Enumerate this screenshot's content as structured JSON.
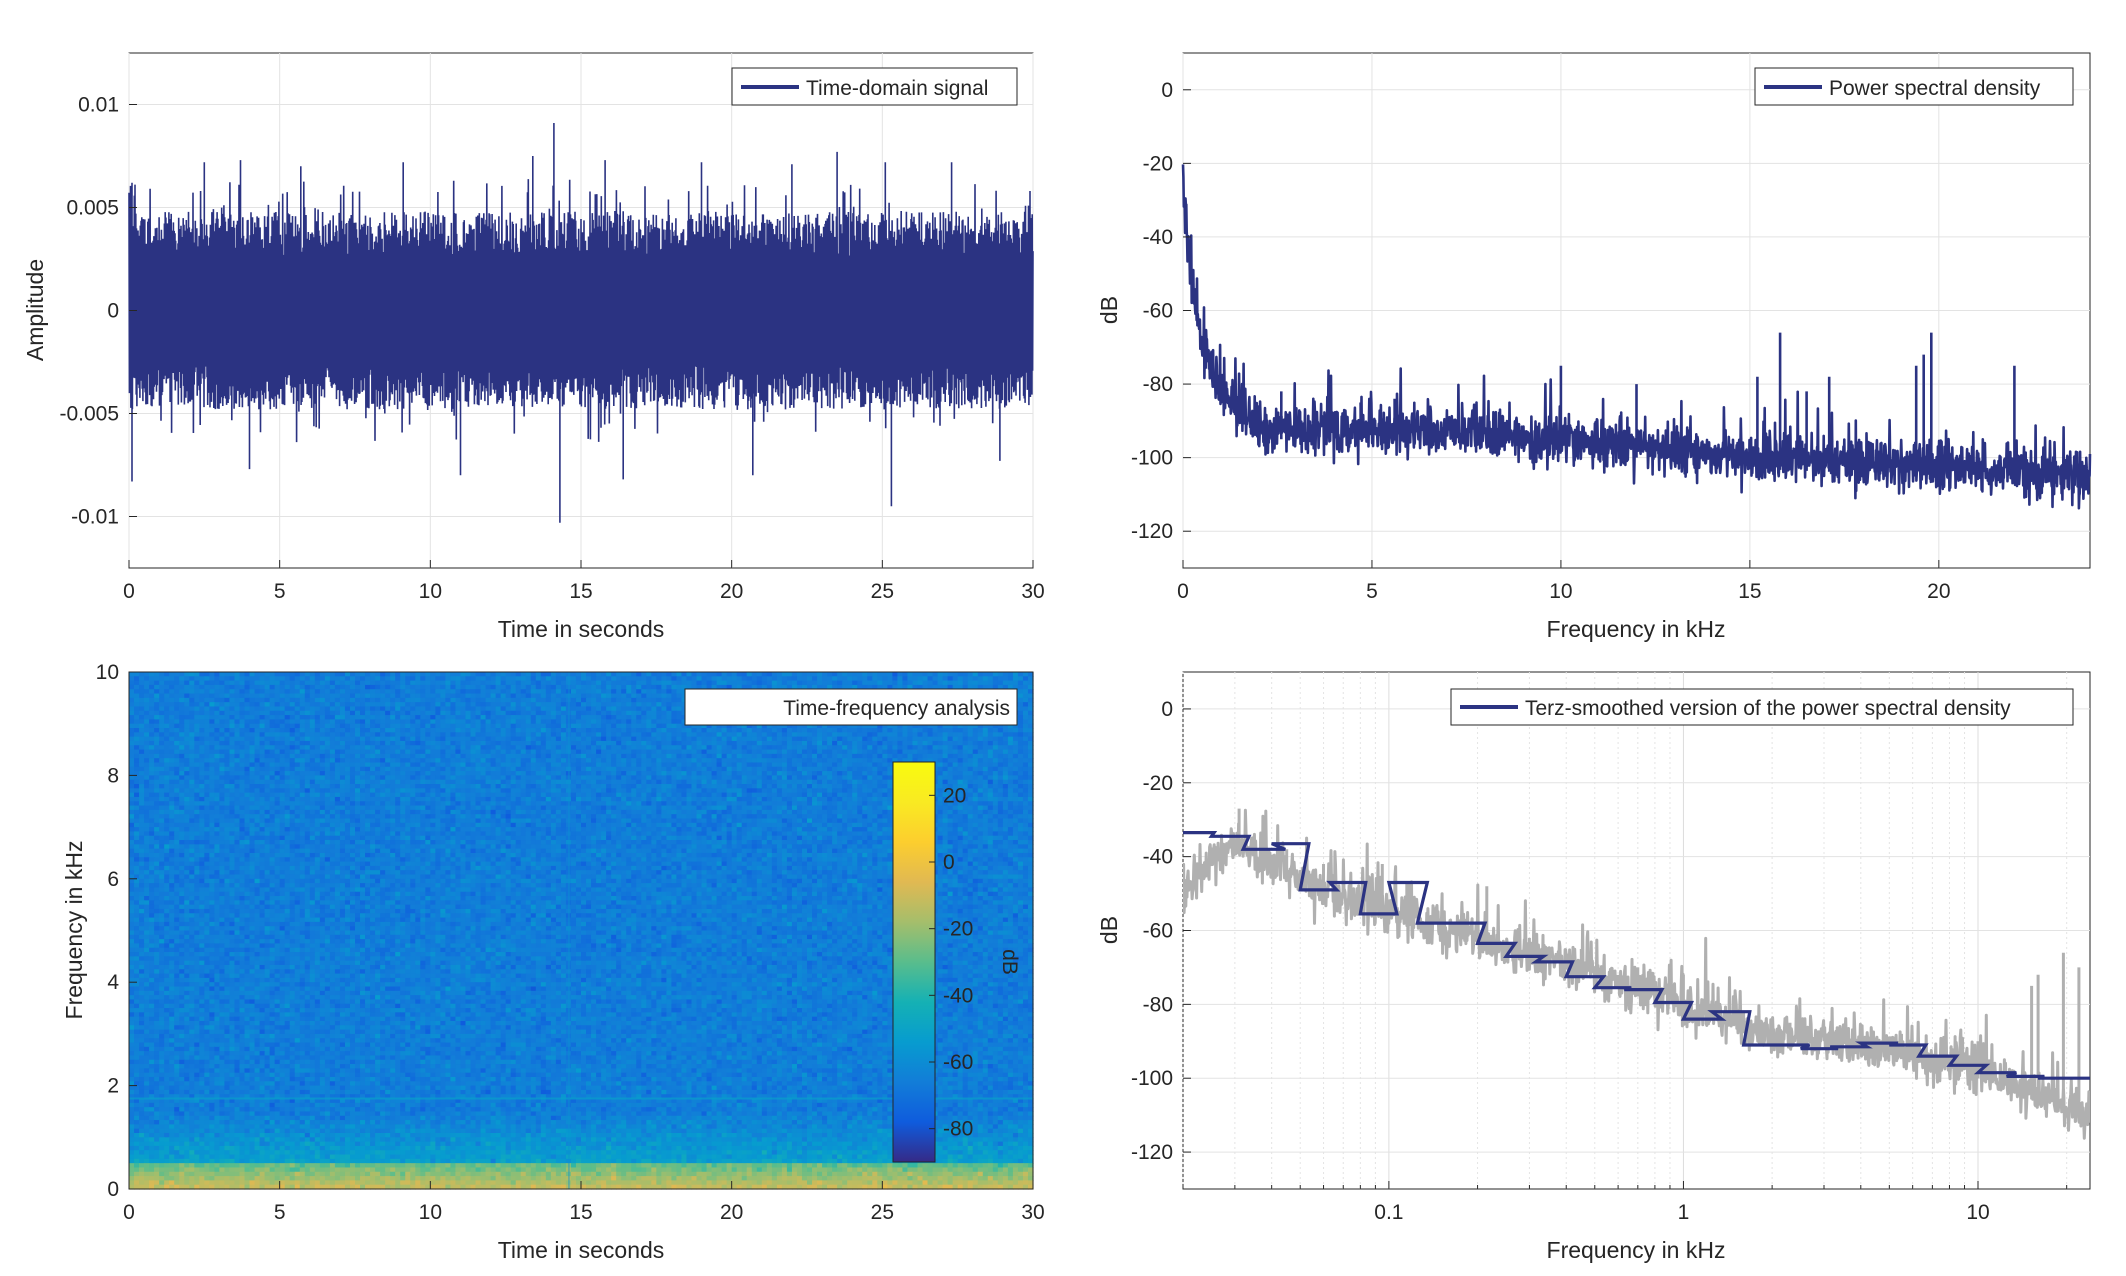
{
  "chart_data": [
    {
      "id": "time-domain",
      "type": "line",
      "xlabel": "Time in seconds",
      "ylabel": "Amplitude",
      "xlim": [
        0,
        30
      ],
      "ylim": [
        -0.0125,
        0.0125
      ],
      "xticks": [
        0,
        5,
        10,
        15,
        20,
        25,
        30
      ],
      "yticks": [
        -0.01,
        -0.005,
        0,
        0.005,
        0.01
      ],
      "ytick_labels": [
        "-0.01",
        "-0.005",
        "0",
        "0.005",
        "0.01"
      ],
      "grid": true,
      "legend_position": "top-right",
      "series": [
        {
          "name": "Time-domain signal",
          "color": "#2b3382",
          "envelope_typical": 0.0048,
          "peaks": [
            [
              0.1,
              0.0062
            ],
            [
              0.1,
              -0.0083
            ],
            [
              2.5,
              0.0072
            ],
            [
              3.7,
              0.0073
            ],
            [
              4.0,
              -0.0077
            ],
            [
              5.7,
              0.007
            ],
            [
              9.1,
              0.0072
            ],
            [
              11.0,
              -0.008
            ],
            [
              13.4,
              0.0075
            ],
            [
              14.1,
              0.0091
            ],
            [
              14.3,
              -0.0103
            ],
            [
              15.8,
              0.0073
            ],
            [
              16.4,
              -0.0082
            ],
            [
              19.0,
              0.0072
            ],
            [
              20.7,
              -0.008
            ],
            [
              22.0,
              0.0071
            ],
            [
              23.5,
              0.0077
            ],
            [
              25.1,
              0.0072
            ],
            [
              25.3,
              -0.0095
            ],
            [
              27.3,
              0.0072
            ],
            [
              28.9,
              -0.0073
            ],
            [
              29.9,
              0.0058
            ]
          ]
        }
      ]
    },
    {
      "id": "psd",
      "type": "line",
      "xlabel": "Frequency in kHz",
      "ylabel": "dB",
      "xlim": [
        0,
        24
      ],
      "ylim": [
        -130,
        10
      ],
      "xticks": [
        0,
        5,
        10,
        15,
        20
      ],
      "yticks": [
        -120,
        -100,
        -80,
        -60,
        -40,
        -20,
        0
      ],
      "grid": true,
      "legend_position": "top-right",
      "series": [
        {
          "name": "Power spectral density",
          "color": "#2b3382",
          "baseline": [
            [
              0,
              -25
            ],
            [
              0.15,
              -45
            ],
            [
              0.5,
              -70
            ],
            [
              1,
              -82
            ],
            [
              2,
              -92
            ],
            [
              5,
              -92
            ],
            [
              10,
              -95
            ],
            [
              15,
              -100
            ],
            [
              20,
              -102
            ],
            [
              24,
              -105
            ]
          ],
          "peaks": [
            [
              1.6,
              -79
            ],
            [
              2.6,
              -82
            ],
            [
              4.7,
              -85
            ],
            [
              5.6,
              -84
            ],
            [
              10.0,
              -75
            ],
            [
              12.0,
              -80
            ],
            [
              15.2,
              -78
            ],
            [
              15.8,
              -66
            ],
            [
              16.5,
              -82
            ],
            [
              17.1,
              -78
            ],
            [
              19.4,
              -75
            ],
            [
              19.6,
              -72
            ],
            [
              19.8,
              -66
            ],
            [
              22.0,
              -75
            ]
          ]
        }
      ]
    },
    {
      "id": "spectrogram",
      "type": "heatmap",
      "xlabel": "Time in seconds",
      "ylabel": "Frequency in kHz",
      "xlim": [
        0,
        30
      ],
      "ylim": [
        0,
        10
      ],
      "xticks": [
        0,
        5,
        10,
        15,
        20,
        25,
        30
      ],
      "yticks": [
        0,
        2,
        4,
        6,
        8,
        10
      ],
      "legend_position": "top-right",
      "legend_label": "Time-frequency analysis",
      "colorbar": {
        "label": "dB",
        "range": [
          -90,
          30
        ],
        "ticks": [
          -80,
          -60,
          -40,
          -20,
          0,
          20
        ],
        "colormap": "parula"
      },
      "features": {
        "background_db": -66,
        "low_frequency_band_khz": [
          0,
          0.5
        ],
        "low_frequency_db": -10,
        "horizontal_line_khz": 1.75,
        "vertical_line_s": 14.6
      }
    },
    {
      "id": "terz-smoothed",
      "type": "line",
      "xlabel": "Frequency in kHz",
      "ylabel": "dB",
      "xscale": "log",
      "xlim": [
        0.02,
        24
      ],
      "ylim": [
        -130,
        10
      ],
      "xticks": [
        0.1,
        1,
        10
      ],
      "xtick_labels": [
        "0.1",
        "1",
        "10"
      ],
      "yticks": [
        -120,
        -100,
        -80,
        -60,
        -40,
        -20,
        0
      ],
      "grid": true,
      "legend_position": "top-right",
      "series": [
        {
          "name": "",
          "color": "#b0b0b0",
          "baseline": [
            [
              0.02,
              -50
            ],
            [
              0.025,
              -40
            ],
            [
              0.03,
              -36
            ],
            [
              0.05,
              -46
            ],
            [
              0.1,
              -55
            ],
            [
              0.2,
              -62
            ],
            [
              0.5,
              -72
            ],
            [
              1,
              -80
            ],
            [
              2,
              -88
            ],
            [
              5,
              -92
            ],
            [
              10,
              -98
            ],
            [
              24,
              -110
            ]
          ],
          "peaks": [
            [
              0.031,
              -27
            ],
            [
              0.045,
              -38
            ],
            [
              0.06,
              -42
            ],
            [
              0.085,
              -45
            ],
            [
              0.095,
              -42
            ],
            [
              0.115,
              -47
            ],
            [
              0.2,
              -58
            ],
            [
              0.215,
              -48
            ],
            [
              0.3,
              -62
            ],
            [
              0.45,
              -65
            ],
            [
              0.7,
              -70
            ],
            [
              1.0,
              -72
            ],
            [
              1.6,
              -82
            ],
            [
              2.3,
              -85
            ],
            [
              5.5,
              -88
            ],
            [
              10.0,
              -90
            ],
            [
              15.2,
              -75
            ],
            [
              16.0,
              -72
            ],
            [
              19.5,
              -66
            ],
            [
              22.0,
              -70
            ]
          ]
        },
        {
          "name": "Terz-smoothed version of the power spectral density",
          "color": "#2b3382",
          "steps": [
            [
              0.02,
              -33.5
            ],
            [
              0.0255,
              -33.5
            ],
            [
              0.025,
              -34.5
            ],
            [
              0.0335,
              -34.5
            ],
            [
              0.032,
              -38
            ],
            [
              0.0445,
              -38
            ],
            [
              0.04,
              -36.5
            ],
            [
              0.0535,
              -36.5
            ],
            [
              0.05,
              -49
            ],
            [
              0.0665,
              -49
            ],
            [
              0.063,
              -47
            ],
            [
              0.0835,
              -47
            ],
            [
              0.08,
              -55.5
            ],
            [
              0.1065,
              -55.5
            ],
            [
              0.1,
              -47
            ],
            [
              0.135,
              -47
            ],
            [
              0.125,
              -58
            ],
            [
              0.168,
              -58
            ],
            [
              0.16,
              -58
            ],
            [
              0.212,
              -58
            ],
            [
              0.2,
              -63.5
            ],
            [
              0.268,
              -63.5
            ],
            [
              0.25,
              -67
            ],
            [
              0.335,
              -67
            ],
            [
              0.315,
              -68.5
            ],
            [
              0.42,
              -68.5
            ],
            [
              0.4,
              -72.5
            ],
            [
              0.535,
              -72.5
            ],
            [
              0.5,
              -75.5
            ],
            [
              0.665,
              -75.5
            ],
            [
              0.63,
              -76
            ],
            [
              0.845,
              -76
            ],
            [
              0.8,
              -79.5
            ],
            [
              1.065,
              -79.5
            ],
            [
              1,
              -84
            ],
            [
              1.35,
              -84
            ],
            [
              1.25,
              -82
            ],
            [
              1.68,
              -82
            ],
            [
              1.6,
              -91
            ],
            [
              2.12,
              -91
            ],
            [
              2,
              -91
            ],
            [
              2.68,
              -91
            ],
            [
              2.5,
              -92
            ],
            [
              3.35,
              -92
            ],
            [
              3.15,
              -91.5
            ],
            [
              4.2,
              -91.5
            ],
            [
              4,
              -90.5
            ],
            [
              5.35,
              -90.5
            ],
            [
              5,
              -91
            ],
            [
              6.65,
              -91
            ],
            [
              6.3,
              -94
            ],
            [
              8.45,
              -94
            ],
            [
              8,
              -96.5
            ],
            [
              10.65,
              -96.5
            ],
            [
              10,
              -98.5
            ],
            [
              13.5,
              -98.5
            ],
            [
              12.5,
              -99.5
            ],
            [
              16.8,
              -99.5
            ],
            [
              16,
              -100
            ],
            [
              24,
              -100
            ]
          ]
        }
      ]
    }
  ]
}
